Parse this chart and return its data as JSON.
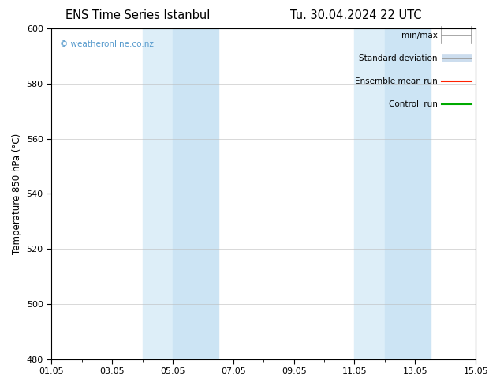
{
  "title1": "ENS Time Series Istanbul",
  "title2": "Tu. 30.04.2024 22 UTC",
  "ylabel": "Temperature 850 hPa (°C)",
  "ylim": [
    480,
    600
  ],
  "yticks": [
    480,
    500,
    520,
    540,
    560,
    580,
    600
  ],
  "xlim_start": 0,
  "xlim_end": 14,
  "xtick_positions": [
    0,
    2,
    4,
    6,
    8,
    10,
    12,
    14
  ],
  "xtick_labels": [
    "01.05",
    "03.05",
    "05.05",
    "07.05",
    "09.05",
    "11.05",
    "13.05",
    "15.05"
  ],
  "watermark": "© weatheronline.co.nz",
  "watermark_color": "#5599cc",
  "background_color": "#ffffff",
  "plot_bg_color": "#ffffff",
  "shaded_bands": [
    {
      "x_start": 3.0,
      "x_end": 4.0,
      "color": "#ddeef8"
    },
    {
      "x_start": 4.0,
      "x_end": 5.5,
      "color": "#cce4f4"
    },
    {
      "x_start": 10.0,
      "x_end": 11.0,
      "color": "#ddeef8"
    },
    {
      "x_start": 11.0,
      "x_end": 12.5,
      "color": "#cce4f4"
    }
  ],
  "legend_entries": [
    {
      "label": "min/max",
      "color": "#999999",
      "lw": 1.2,
      "style": "minmax"
    },
    {
      "label": "Standard deviation",
      "color": "#ccddee",
      "lw": 7,
      "style": "stddev"
    },
    {
      "label": "Ensemble mean run",
      "color": "#ff2200",
      "lw": 1.5,
      "style": "line"
    },
    {
      "label": "Controll run",
      "color": "#00aa00",
      "lw": 1.5,
      "style": "line"
    }
  ],
  "title_fontsize": 10.5,
  "axis_fontsize": 8.5,
  "tick_fontsize": 8,
  "legend_fontsize": 7.5
}
